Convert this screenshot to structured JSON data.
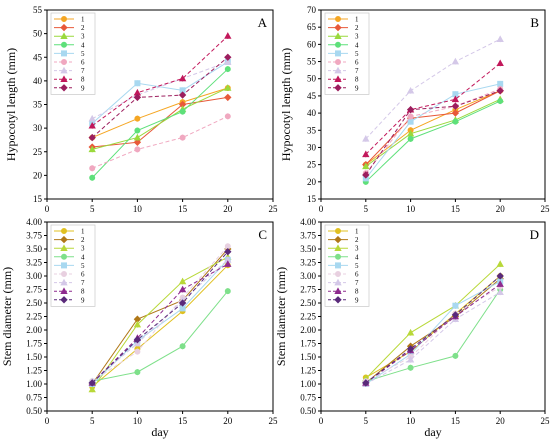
{
  "chart_data": [
    {
      "type": "line",
      "panel": "A",
      "x": [
        5,
        10,
        15,
        20
      ],
      "xlabel": "",
      "ylabel": "Hypocotyl length (mm)",
      "xlim": [
        0,
        25
      ],
      "ylim": [
        15,
        55
      ],
      "xticks": [
        "0",
        "5",
        "10",
        "15",
        "20",
        "25"
      ],
      "yticks": [
        "15",
        "20",
        "25",
        "30",
        "35",
        "40",
        "45",
        "50",
        "55"
      ],
      "legend_position": "top-left",
      "series": [
        {
          "name": "1",
          "color": "#f5a623",
          "marker": "circle",
          "dash": "solid",
          "values": [
            28,
            32,
            35.5,
            38.5
          ]
        },
        {
          "name": "2",
          "color": "#e8593a",
          "marker": "diamond",
          "dash": "solid",
          "values": [
            26,
            27,
            35,
            36.5
          ]
        },
        {
          "name": "3",
          "color": "#9ad93c",
          "marker": "triangle",
          "dash": "solid",
          "values": [
            25.5,
            28,
            34,
            38.5
          ]
        },
        {
          "name": "4",
          "color": "#5ee07a",
          "marker": "circle",
          "dash": "solid",
          "values": [
            19.5,
            29.5,
            33.5,
            42.5
          ]
        },
        {
          "name": "5",
          "color": "#a8d8f0",
          "marker": "square",
          "dash": "solid",
          "values": [
            31,
            39.5,
            38,
            44
          ]
        },
        {
          "name": "6",
          "color": "#f0a8c0",
          "marker": "circle",
          "dash": "dashed",
          "values": [
            21.5,
            25.5,
            28,
            32.5
          ]
        },
        {
          "name": "7",
          "color": "#d4c8e8",
          "marker": "triangle",
          "dash": "dashed",
          "values": [
            32,
            37,
            40.5,
            44
          ]
        },
        {
          "name": "8",
          "color": "#c2185b",
          "marker": "triangle",
          "dash": "dashed",
          "values": [
            30.5,
            37.5,
            40.5,
            49.5
          ]
        },
        {
          "name": "9",
          "color": "#9c1e5e",
          "marker": "diamond",
          "dash": "dashed",
          "values": [
            28,
            36.5,
            37,
            45
          ]
        }
      ]
    },
    {
      "type": "line",
      "panel": "B",
      "x": [
        5,
        10,
        15,
        20
      ],
      "xlabel": "",
      "ylabel": "Hypocotyl length (mm)",
      "xlim": [
        0,
        25
      ],
      "ylim": [
        15,
        70
      ],
      "xticks": [
        "0",
        "5",
        "10",
        "15",
        "20",
        "25"
      ],
      "yticks": [
        "15",
        "20",
        "25",
        "30",
        "35",
        "40",
        "45",
        "50",
        "55",
        "60",
        "65",
        "70"
      ],
      "legend_position": "top-left",
      "series": [
        {
          "name": "1",
          "color": "#f5a623",
          "marker": "circle",
          "dash": "solid",
          "values": [
            25,
            35,
            41,
            46.5
          ]
        },
        {
          "name": "2",
          "color": "#e8593a",
          "marker": "diamond",
          "dash": "solid",
          "values": [
            25,
            38.5,
            40,
            46.5
          ]
        },
        {
          "name": "3",
          "color": "#9ad93c",
          "marker": "triangle",
          "dash": "solid",
          "values": [
            24.5,
            34,
            38,
            44
          ]
        },
        {
          "name": "4",
          "color": "#5ee07a",
          "marker": "circle",
          "dash": "solid",
          "values": [
            20,
            32.5,
            37.5,
            43.5
          ]
        },
        {
          "name": "5",
          "color": "#a8d8f0",
          "marker": "square",
          "dash": "solid",
          "values": [
            21,
            37.5,
            45.5,
            48.5
          ]
        },
        {
          "name": "6",
          "color": "#f0a8c0",
          "marker": "circle",
          "dash": "dashed",
          "values": [
            22.5,
            39,
            42,
            47
          ]
        },
        {
          "name": "7",
          "color": "#d4c8e8",
          "marker": "triangle",
          "dash": "dashed",
          "values": [
            32.5,
            46.5,
            55,
            61.5
          ]
        },
        {
          "name": "8",
          "color": "#c2185b",
          "marker": "triangle",
          "dash": "dashed",
          "values": [
            28,
            41,
            44,
            54.5
          ]
        },
        {
          "name": "9",
          "color": "#9c1e5e",
          "marker": "diamond",
          "dash": "dashed",
          "values": [
            22,
            41,
            42,
            46.5
          ]
        }
      ]
    },
    {
      "type": "line",
      "panel": "C",
      "x": [
        5,
        10,
        15,
        20
      ],
      "xlabel": "day",
      "ylabel": "Stem diameter (mm)",
      "xlim": [
        0,
        25
      ],
      "ylim": [
        0.5,
        4.0
      ],
      "xticks": [
        "0",
        "5",
        "10",
        "15",
        "20",
        "25"
      ],
      "yticks": [
        "0.50",
        "0.75",
        "1.00",
        "1.25",
        "1.50",
        "1.75",
        "2.00",
        "2.25",
        "2.50",
        "2.75",
        "3.00",
        "3.25",
        "3.50",
        "3.75",
        "4.00"
      ],
      "legend_position": "top-left",
      "series": [
        {
          "name": "1",
          "color": "#e0c020",
          "marker": "circle",
          "dash": "solid",
          "values": [
            0.95,
            1.65,
            2.35,
            3.2
          ]
        },
        {
          "name": "2",
          "color": "#b07818",
          "marker": "diamond",
          "dash": "solid",
          "values": [
            1.0,
            2.2,
            2.55,
            3.5
          ]
        },
        {
          "name": "3",
          "color": "#b8d838",
          "marker": "triangle",
          "dash": "solid",
          "values": [
            0.9,
            2.1,
            2.9,
            3.35
          ]
        },
        {
          "name": "4",
          "color": "#7ee08a",
          "marker": "circle",
          "dash": "solid",
          "values": [
            1.05,
            1.22,
            1.7,
            2.72
          ]
        },
        {
          "name": "5",
          "color": "#a8d8f0",
          "marker": "square",
          "dash": "solid",
          "values": [
            1.0,
            1.8,
            2.4,
            3.3
          ]
        },
        {
          "name": "6",
          "color": "#e8d0e0",
          "marker": "circle",
          "dash": "dashed",
          "values": [
            1.05,
            1.6,
            2.6,
            3.55
          ]
        },
        {
          "name": "7",
          "color": "#d4c8e8",
          "marker": "triangle",
          "dash": "dashed",
          "values": [
            1.05,
            1.75,
            2.55,
            3.3
          ]
        },
        {
          "name": "8",
          "color": "#8e2a8e",
          "marker": "triangle",
          "dash": "dashed",
          "values": [
            1.02,
            1.85,
            2.75,
            3.22
          ]
        },
        {
          "name": "9",
          "color": "#5a2a7a",
          "marker": "diamond",
          "dash": "dashed",
          "values": [
            1.02,
            1.82,
            2.5,
            3.45
          ]
        }
      ]
    },
    {
      "type": "line",
      "panel": "D",
      "x": [
        5,
        10,
        15,
        20
      ],
      "xlabel": "day",
      "ylabel": "Stem diameter (mm)",
      "xlim": [
        0,
        25
      ],
      "ylim": [
        0.5,
        4.0
      ],
      "xticks": [
        "0",
        "5",
        "10",
        "15",
        "20",
        "25"
      ],
      "yticks": [
        "0.50",
        "0.75",
        "1.00",
        "1.25",
        "1.50",
        "1.75",
        "2.00",
        "2.25",
        "2.50",
        "2.75",
        "3.00",
        "3.25",
        "3.50",
        "3.75",
        "4.00"
      ],
      "legend_position": "top-left",
      "series": [
        {
          "name": "1",
          "color": "#e0c020",
          "marker": "circle",
          "dash": "solid",
          "values": [
            1.12,
            1.6,
            2.3,
            3.0
          ]
        },
        {
          "name": "2",
          "color": "#b07818",
          "marker": "diamond",
          "dash": "solid",
          "values": [
            1.02,
            1.7,
            2.25,
            2.95
          ]
        },
        {
          "name": "3",
          "color": "#b8d838",
          "marker": "triangle",
          "dash": "solid",
          "values": [
            1.1,
            1.95,
            2.45,
            3.22
          ]
        },
        {
          "name": "4",
          "color": "#7ee08a",
          "marker": "circle",
          "dash": "solid",
          "values": [
            1.05,
            1.3,
            1.52,
            2.75
          ]
        },
        {
          "name": "5",
          "color": "#a8d8f0",
          "marker": "square",
          "dash": "solid",
          "values": [
            1.0,
            1.55,
            2.45,
            2.9
          ]
        },
        {
          "name": "6",
          "color": "#e8d0e0",
          "marker": "circle",
          "dash": "dashed",
          "values": [
            1.05,
            1.5,
            2.3,
            2.8
          ]
        },
        {
          "name": "7",
          "color": "#d4c8e8",
          "marker": "triangle",
          "dash": "dashed",
          "values": [
            1.0,
            1.45,
            2.2,
            2.7
          ]
        },
        {
          "name": "8",
          "color": "#8e2a8e",
          "marker": "triangle",
          "dash": "dashed",
          "values": [
            1.02,
            1.62,
            2.25,
            2.85
          ]
        },
        {
          "name": "9",
          "color": "#5a2a7a",
          "marker": "diamond",
          "dash": "dashed",
          "values": [
            1.02,
            1.65,
            2.28,
            3.0
          ]
        }
      ]
    }
  ]
}
